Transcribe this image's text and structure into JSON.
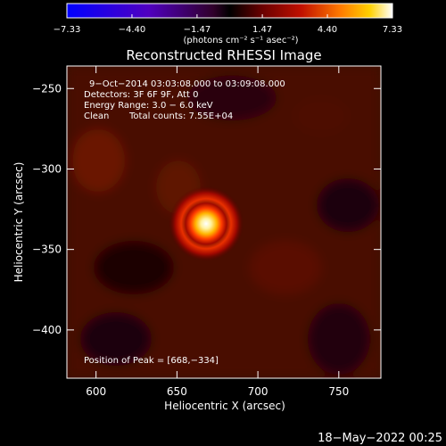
{
  "chart_data": {
    "type": "heatmap",
    "title": "Reconstructed RHESSI Image",
    "xlabel": "Heliocentric X (arcsec)",
    "ylabel": "Heliocentric Y (arcsec)",
    "xlim": [
      582,
      776
    ],
    "ylim": [
      -430,
      -236
    ],
    "x_ticks": [
      600,
      650,
      700,
      750
    ],
    "x_tick_labels": [
      "600",
      "650",
      "700",
      "750"
    ],
    "y_ticks": [
      -250,
      -300,
      -350,
      -400
    ],
    "y_tick_labels": [
      "−250",
      "−300",
      "−350",
      "−400"
    ],
    "peak": {
      "x": 668,
      "y": -334
    },
    "colorbar": {
      "ticks": [
        -7.33,
        -4.4,
        -1.47,
        1.47,
        4.4,
        7.33
      ],
      "tick_labels": [
        "−7.33",
        "−4.40",
        "−1.47",
        "1.47",
        "4.40",
        "7.33"
      ],
      "units_label": "(photons cm⁻² s⁻¹ asec⁻²)",
      "range": [
        -7.33,
        7.33
      ]
    },
    "annotations": {
      "time_range": "9−Oct−2014 03:03:08.000 to 03:09:08.000",
      "detectors": "Detectors: 3F 6F 9F, Att 0",
      "energy": "Energy Range: 3.0 − 6.0 keV",
      "clean": "Clean",
      "counts": "Total counts: 7.55E+04",
      "peak_position": "Position of Peak = [668,−334]"
    }
  },
  "footer": {
    "date": "18−May−2022 00:25"
  }
}
